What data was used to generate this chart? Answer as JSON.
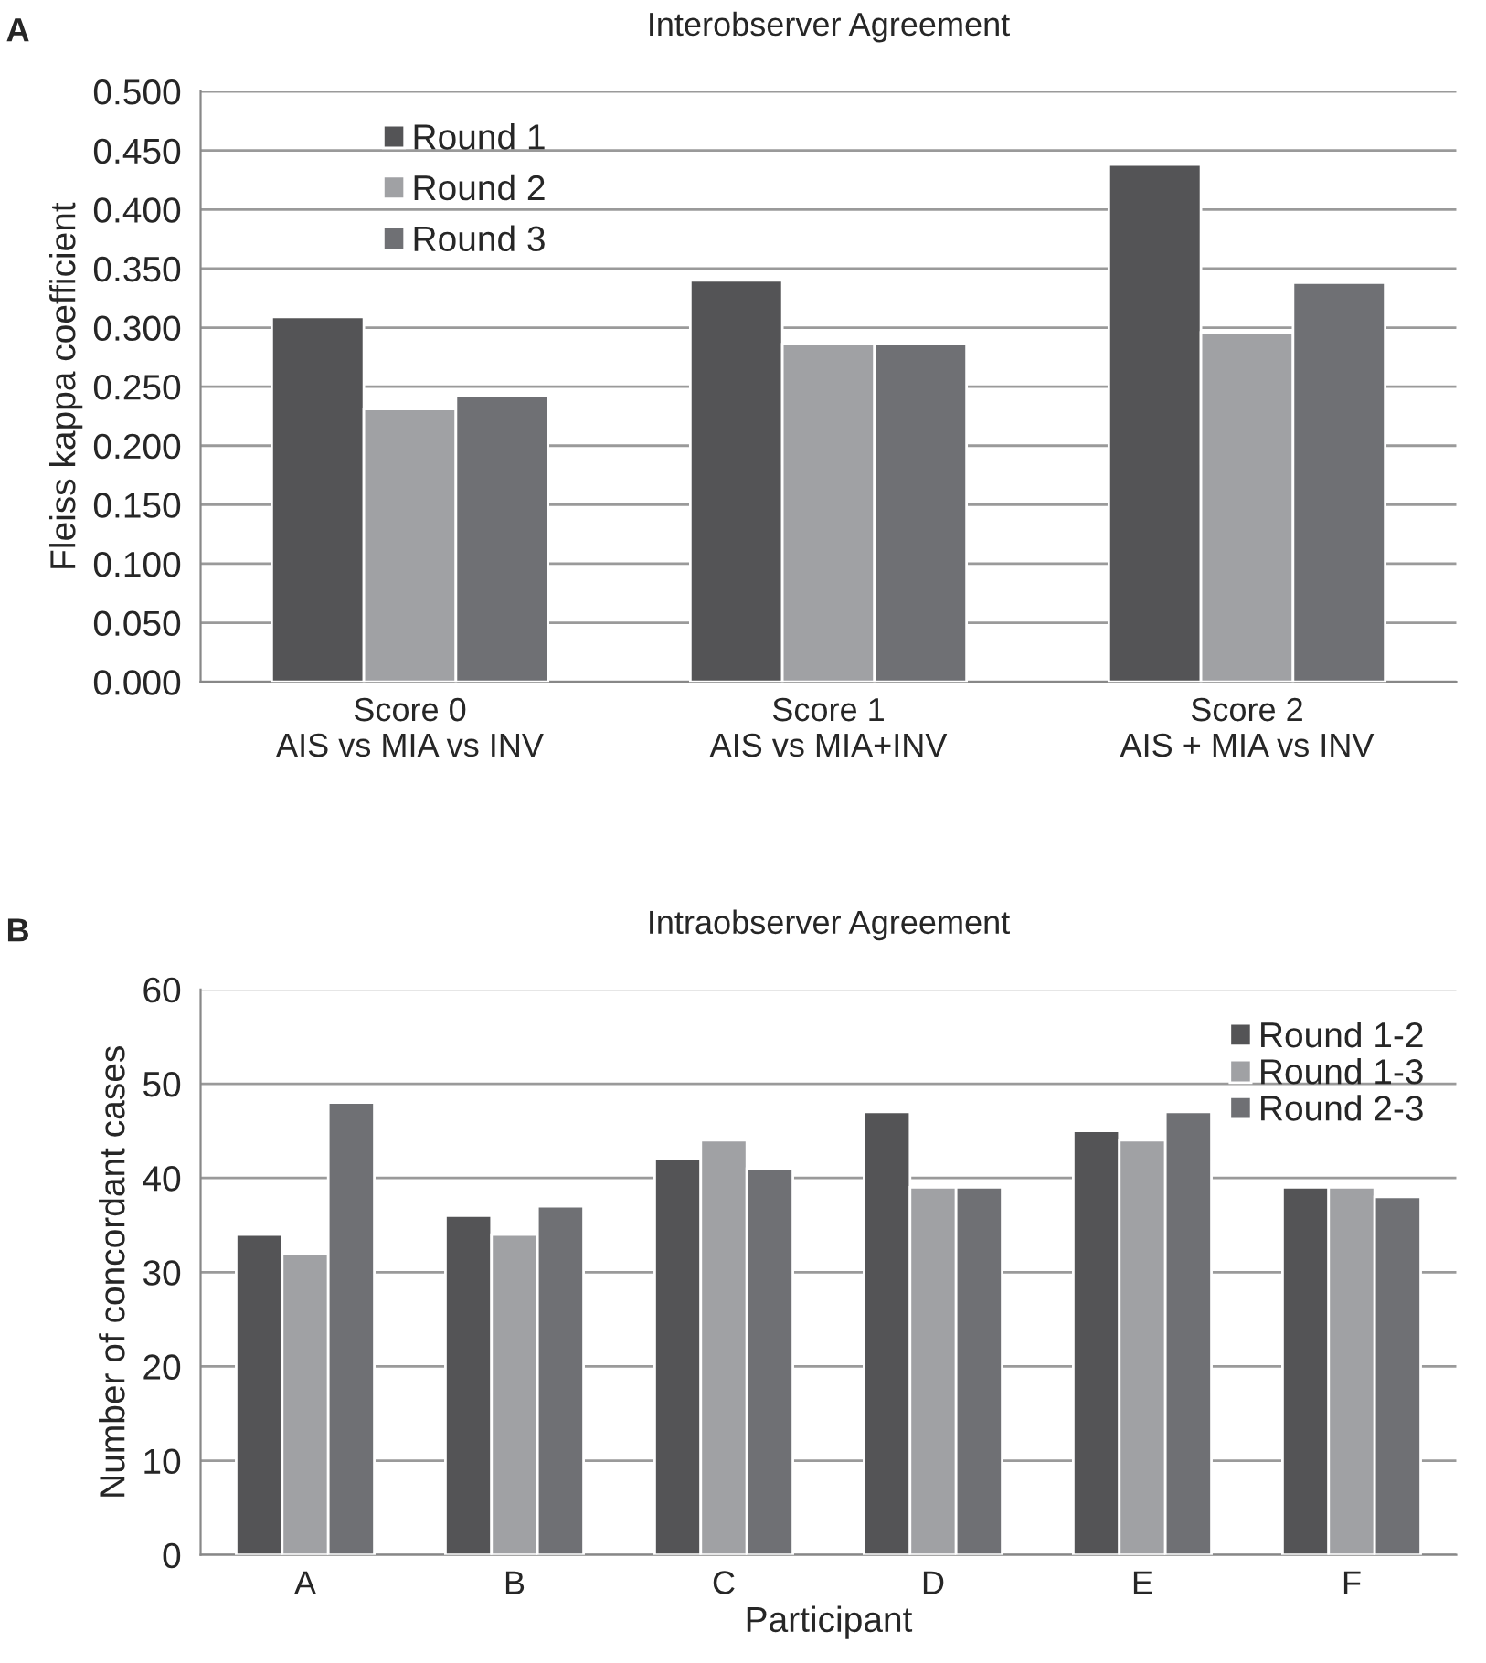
{
  "chart_data": [
    {
      "type": "bar",
      "title": "Interobserver Agreement",
      "ylabel": "Fleiss kappa coefficient",
      "annotations": [
        "A"
      ],
      "categories": [
        "Score 0\nAIS vs MIA vs INV",
        "Score 1\nAIS vs MIA+INV",
        "Score 2\nAIS + MIA vs INV"
      ],
      "series": [
        {
          "name": "Round 1",
          "color": "#545456",
          "values": [
            0.309,
            0.34,
            0.438
          ]
        },
        {
          "name": "Round 2",
          "color": "#a0a1a4",
          "values": [
            0.231,
            0.286,
            0.296
          ]
        },
        {
          "name": "Round 3",
          "color": "#6f7074",
          "values": [
            0.242,
            0.286,
            0.338
          ]
        }
      ],
      "ylim": [
        0,
        0.5
      ],
      "yticks": [
        {
          "value": 0,
          "label": "0.000"
        },
        {
          "value": 0.05,
          "label": "0.050"
        },
        {
          "value": 0.1,
          "label": "0.100"
        },
        {
          "value": 0.15,
          "label": "0.150"
        },
        {
          "value": 0.2,
          "label": "0.200"
        },
        {
          "value": 0.25,
          "label": "0.250"
        },
        {
          "value": 0.3,
          "label": "0.300"
        },
        {
          "value": 0.35,
          "label": "0.350"
        },
        {
          "value": 0.4,
          "label": "0.400"
        },
        {
          "value": 0.45,
          "label": "0.450"
        },
        {
          "value": 0.5,
          "label": "0.500"
        }
      ],
      "grid": "y",
      "legend": "top left"
    },
    {
      "type": "bar",
      "title": "Intraobserver Agreement",
      "xlabel": "Participant",
      "ylabel": "Number of concordant cases",
      "annotations": [
        "B"
      ],
      "categories": [
        "A",
        "B",
        "C",
        "D",
        "E",
        "F"
      ],
      "series": [
        {
          "name": "Round 1-2",
          "color": "#545456",
          "values": [
            34,
            36,
            42,
            47,
            45,
            39
          ]
        },
        {
          "name": "Round 1-3",
          "color": "#a0a1a4",
          "values": [
            32,
            34,
            44,
            39,
            44,
            39
          ]
        },
        {
          "name": "Round 2-3",
          "color": "#6f7074",
          "values": [
            48,
            37,
            41,
            39,
            47,
            38
          ]
        }
      ],
      "ylim": [
        0,
        60
      ],
      "yticks": [
        0,
        10,
        20,
        30,
        40,
        50,
        60
      ],
      "grid": "y",
      "legend": "top right"
    }
  ]
}
